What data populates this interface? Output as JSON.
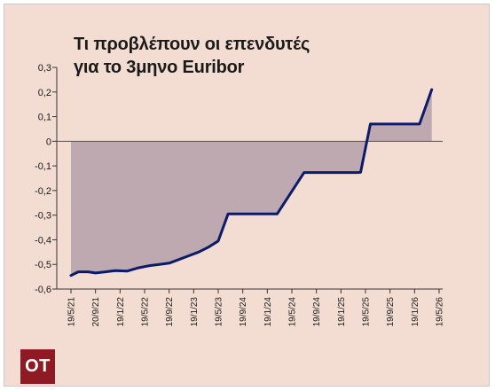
{
  "title_line1": "Τι προβλέπουν οι επενδυτές",
  "title_line2": "για το 3μηνο Euribor",
  "logo_text": "OT",
  "colors": {
    "background": "#f3ddd2",
    "line": "#0c1a6b",
    "fill": "#bfa9b0",
    "zero_line": "#555555",
    "logo": "#8e1b24"
  },
  "chart_data": {
    "type": "area",
    "title": "Τι προβλέπουν οι επενδυτές για το 3μηνο Euribor",
    "xlabel": "",
    "ylabel": "",
    "ylim": [
      -0.6,
      0.3
    ],
    "yticks": [
      "0,3",
      "0,2",
      "0,1",
      "0",
      "-0,1",
      "-0,2",
      "-0,3",
      "-0,4",
      "-0,5",
      "-0,6"
    ],
    "ytick_values": [
      0.3,
      0.2,
      0.1,
      0,
      -0.1,
      -0.2,
      -0.3,
      -0.4,
      -0.5,
      -0.6
    ],
    "xticks": [
      "19/5/21",
      "20/9/21",
      "19/1/22",
      "19/5/22",
      "19/9/22",
      "19/1/23",
      "19/5/23",
      "19/9/24",
      "19/1/24",
      "19/5/24",
      "19/9/24",
      "19/1/25",
      "19/5/25",
      "19/9/25",
      "19/1/26",
      "19/5/26"
    ],
    "grid": false,
    "series": [
      {
        "x": [
          0,
          0.3,
          0.7,
          1.0,
          1.4,
          1.8,
          2.3,
          2.7,
          3.2,
          3.6,
          4.0,
          4.4,
          4.8,
          5.2,
          5.6,
          6.0,
          6.4,
          8.0,
          8.4,
          9.5,
          9.8,
          10.2,
          10.6,
          11.3,
          11.7,
          11.8,
          12.2,
          13.0,
          13.8,
          14.2,
          14.7
        ],
        "y": [
          -0.545,
          -0.53,
          -0.53,
          -0.535,
          -0.53,
          -0.525,
          -0.527,
          -0.515,
          -0.505,
          -0.5,
          -0.495,
          -0.48,
          -0.465,
          -0.45,
          -0.43,
          -0.405,
          -0.295,
          -0.295,
          -0.295,
          -0.127,
          -0.127,
          -0.127,
          -0.127,
          -0.127,
          -0.127,
          -0.126,
          0.07,
          0.07,
          0.07,
          0.07,
          0.21
        ]
      }
    ]
  }
}
